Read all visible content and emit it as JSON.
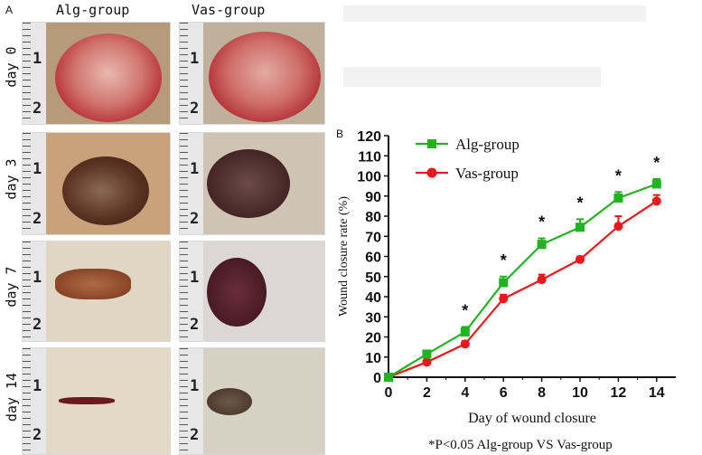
{
  "panel_a": {
    "letter": "A",
    "columns": [
      "Alg-group",
      "Vas-group"
    ],
    "rows": [
      "day 0",
      "day 3",
      "day 7",
      "day 14"
    ],
    "ruler_numbers": [
      "1",
      "2"
    ]
  },
  "panel_b": {
    "letter": "B",
    "footnote": "*P<0.05 Alg-group VS Vas-group"
  },
  "colors": {
    "alg": "#22b322",
    "vas": "#e8181c",
    "axis": "#111111"
  },
  "chart_data": {
    "type": "line",
    "x": [
      0,
      2,
      4,
      6,
      8,
      10,
      12,
      14
    ],
    "series": [
      {
        "name": "Alg-group",
        "values": [
          0,
          11.5,
          22.5,
          47,
          66,
          74.5,
          89,
          96
        ],
        "errors": [
          0.5,
          1.5,
          2.5,
          3,
          3,
          4,
          3,
          2.5
        ],
        "marker": "square"
      },
      {
        "name": "Vas-group",
        "values": [
          0,
          7.5,
          16.5,
          39,
          48.5,
          58.5,
          75,
          87.5
        ],
        "errors": [
          0.5,
          1,
          1.5,
          2,
          2.5,
          1.5,
          5,
          3
        ],
        "marker": "circle"
      }
    ],
    "significance": [
      {
        "x": 4,
        "label": "*"
      },
      {
        "x": 6,
        "label": "*"
      },
      {
        "x": 8,
        "label": "*"
      },
      {
        "x": 10,
        "label": "*"
      },
      {
        "x": 12,
        "label": "*"
      },
      {
        "x": 14,
        "label": "*"
      }
    ],
    "xticks": [
      "0",
      "2",
      "4",
      "6",
      "8",
      "10",
      "12",
      "14"
    ],
    "yticks": [
      "0",
      "10",
      "20",
      "30",
      "40",
      "50",
      "60",
      "70",
      "80",
      "90",
      "100",
      "110",
      "120"
    ],
    "xlabel": "Day of wound closure",
    "ylabel": "Wound closure rate (%)",
    "xlim": [
      0,
      15
    ],
    "ylim": [
      0,
      120
    ],
    "legend_position": "top-left"
  }
}
